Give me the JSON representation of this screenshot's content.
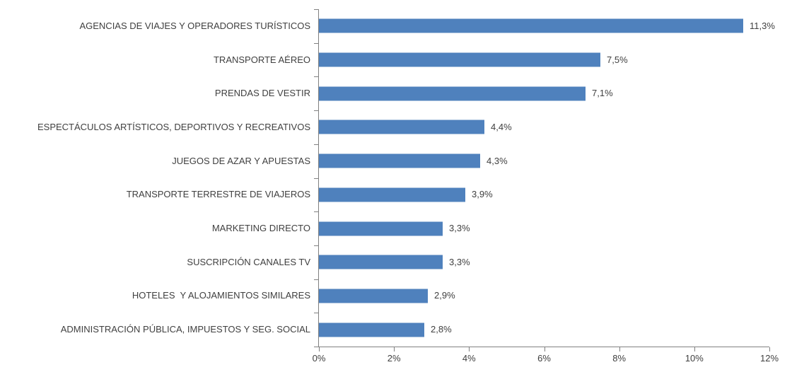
{
  "chart_data": {
    "type": "bar",
    "orientation": "horizontal",
    "title": "",
    "xlabel": "",
    "ylabel": "",
    "categories": [
      "AGENCIAS DE VIAJES Y OPERADORES TURÍSTICOS",
      "TRANSPORTE AÉREO",
      "PRENDAS DE VESTIR",
      "ESPECTÁCULOS ARTÍSTICOS, DEPORTIVOS Y RECREATIVOS",
      "JUEGOS DE AZAR Y APUESTAS",
      "TRANSPORTE TERRESTRE DE VIAJEROS",
      "MARKETING DIRECTO",
      "SUSCRIPCIÓN CANALES TV",
      "HOTELES  Y ALOJAMIENTOS SIMILARES",
      "ADMINISTRACIÓN PÚBLICA, IMPUESTOS Y SEG. SOCIAL"
    ],
    "values": [
      11.3,
      7.5,
      7.1,
      4.4,
      4.3,
      3.9,
      3.3,
      3.3,
      2.9,
      2.8
    ],
    "value_labels": [
      "11,3%",
      "7,5%",
      "7,1%",
      "4,4%",
      "4,3%",
      "3,9%",
      "3,3%",
      "3,3%",
      "2,9%",
      "2,8%"
    ],
    "xlim": [
      0,
      12
    ],
    "x_ticks": [
      "0%",
      "2%",
      "4%",
      "6%",
      "8%",
      "10%",
      "12%"
    ],
    "grid": false,
    "legend": null,
    "bar_color": "#4F81BD",
    "axis_color": "#808080",
    "text_color": "#3F3F3F"
  }
}
